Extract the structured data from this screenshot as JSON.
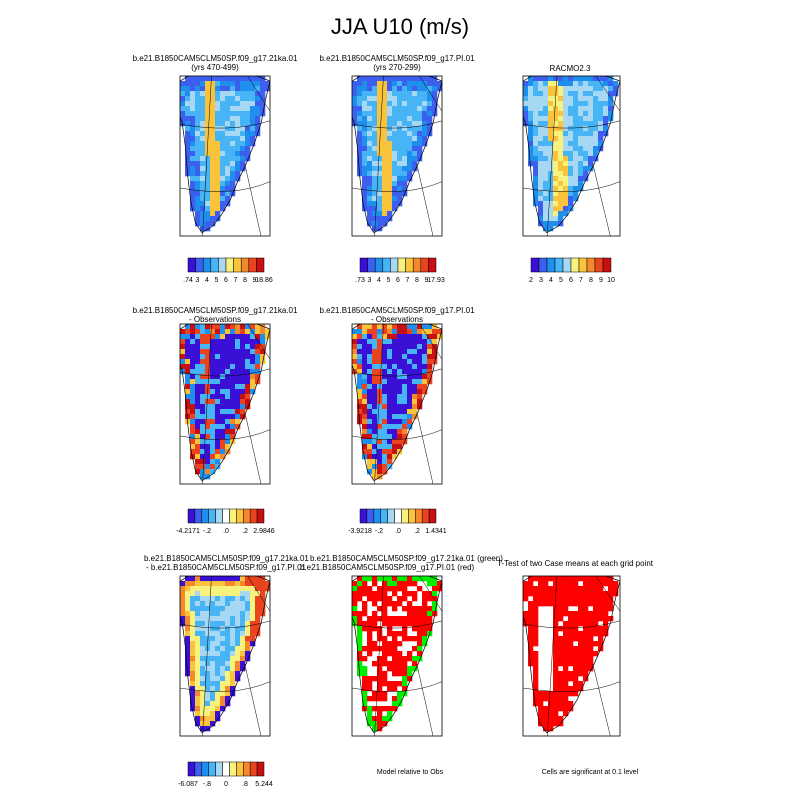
{
  "figure": {
    "title": "JJA U10 (m/s)"
  },
  "palette": {
    "seq": [
      "#3a0fd6",
      "#3d5ff0",
      "#1f8fee",
      "#46b4f5",
      "#a6d8f4",
      "#f7f17e",
      "#f9c43c",
      "#f3892b",
      "#e9431f",
      "#c80f12"
    ],
    "div": [
      "#3a0fd6",
      "#3d5ff0",
      "#1f8fee",
      "#46b4f5",
      "#a6d8f4",
      "#ffffff",
      "#f7f17e",
      "#f9c43c",
      "#f3892b",
      "#e9431f",
      "#c80f12"
    ],
    "sig_red": "#ff0000",
    "sig_green": "#00ee00"
  },
  "panels": [
    {
      "id": "p1",
      "title": [
        "b.e21.B1850CAM5CLM50SP.f09_g17.21ka.01",
        "(yrs 470-499)"
      ],
      "mode": "seq",
      "seed": 3,
      "colorbar": {
        "labels": [
          ".74",
          "3",
          "4",
          "5",
          "6",
          "7",
          "8",
          "9",
          "18.86"
        ]
      }
    },
    {
      "id": "p2",
      "title": [
        "b.e21.B1850CAM5CLM50SP.f09_g17.PI.01",
        "(yrs 270-299)"
      ],
      "mode": "seq",
      "seed": 7,
      "colorbar": {
        "labels": [
          ".73",
          "3",
          "4",
          "5",
          "6",
          "7",
          "8",
          "9",
          "17.93"
        ]
      }
    },
    {
      "id": "p3",
      "title": [
        "RACMO2.3"
      ],
      "mode": "seq2",
      "seed": 11,
      "colorbar": {
        "labels": [
          "2",
          "3",
          "4",
          "5",
          "6",
          "7",
          "8",
          "9",
          "10"
        ]
      }
    },
    {
      "id": "p4",
      "title": [
        "b.e21.B1850CAM5CLM50SP.f09_g17.21ka.01",
        "- Observations"
      ],
      "mode": "diff",
      "seed": 5,
      "colorbar": {
        "labels": [
          "-4.2171",
          "-.2",
          ".0",
          ".2",
          "2.9846"
        ]
      }
    },
    {
      "id": "p5",
      "title": [
        "b.e21.B1850CAM5CLM50SP.f09_g17.PI.01",
        "- Observations"
      ],
      "mode": "diff",
      "seed": 9,
      "colorbar": {
        "labels": [
          "-3.9218",
          "-.2",
          ".0",
          ".2",
          "1.4341"
        ]
      }
    },
    {
      "id": "p6",
      "title": [
        "b.e21.B1850CAM5CLM50SP.f09_g17.21ka.01",
        "- b.e21.B1850CAM5CLM50SP.f09_g17.PI.01"
      ],
      "mode": "diffsm",
      "seed": 13,
      "colorbar": {
        "labels": [
          "-6.087",
          "-.8",
          "0",
          ".8",
          "5.244"
        ]
      }
    },
    {
      "id": "p7",
      "title": [
        "b.e21.B1850CAM5CLM50SP.f09_g17.21ka.01 (green)",
        "b.e21.B1850CAM5CLM50SP.f09_g17.PI.01 (red)"
      ],
      "mode": "rg",
      "seed": 17,
      "note": "Model relative to Obs"
    },
    {
      "id": "p8",
      "title": [
        "T-Test of two Case means at each grid point"
      ],
      "mode": "sig",
      "seed": 19,
      "note": "Cells are significant at 0.1 level"
    }
  ]
}
